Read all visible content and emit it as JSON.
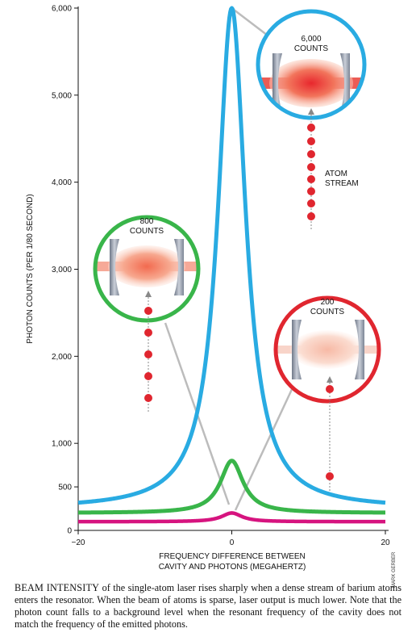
{
  "chart_data": {
    "type": "line",
    "xlabel": [
      "FREQUENCY DIFFERENCE BETWEEN",
      "CAVITY AND PHOTONS (MEGAHERTZ)"
    ],
    "ylabel": "PHOTON COUNTS (PER 1/80 SECOND)",
    "xlim": [
      -20,
      20
    ],
    "ylim": [
      0,
      6000
    ],
    "x_ticks": [
      -20,
      0,
      20
    ],
    "x_tick_labels": [
      "−20",
      "0",
      "20"
    ],
    "y_ticks": [
      0,
      500,
      1000,
      2000,
      3000,
      4000,
      5000,
      6000
    ],
    "y_tick_labels": [
      "0",
      "500",
      "1,000",
      "2,000",
      "3,000",
      "4,000",
      "5,000",
      "6,000"
    ],
    "grid": false,
    "series": [
      {
        "key": "dense",
        "color": "#29abe2",
        "baseline": 250,
        "peak": 6000,
        "halfwidth": 2.2
      },
      {
        "key": "medium",
        "color": "#39b54a",
        "baseline": 200,
        "peak": 800,
        "halfwidth": 1.8
      },
      {
        "key": "sparse",
        "color": "#d6147f",
        "baseline": 100,
        "peak": 200,
        "halfwidth": 1.6
      }
    ],
    "insets": [
      {
        "key": "blue",
        "lines": [
          "6,000",
          "COUNTS"
        ],
        "stream_label": [
          "ATOM",
          "STREAM"
        ],
        "color": "#29abe2"
      },
      {
        "key": "green",
        "lines": [
          "800",
          "COUNTS"
        ],
        "color": "#39b54a"
      },
      {
        "key": "red",
        "lines": [
          "200",
          "COUNTS"
        ],
        "color": "#e0262f"
      }
    ]
  },
  "credit": "MARK GERBER",
  "caption": {
    "lead": "BEAM INTENSITY",
    "text": " of the single-atom laser rises sharply when a dense stream of barium atoms enters the resonator. When the beam of atoms is sparse, laser output is much lower. Note that the photon count falls to a background level when the resonant frequency of the cavity does not match the frequency of the emitted photons."
  },
  "colors": {
    "atom": "#e0262f",
    "mirror": "#8a93a3",
    "connector": "#b8b8b8"
  }
}
